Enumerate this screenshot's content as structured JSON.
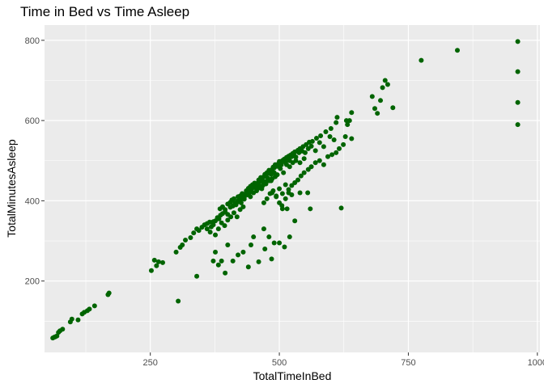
{
  "chart_data": {
    "type": "scatter",
    "title": "Time in Bed vs Time Asleep",
    "xlabel": "TotalTimeInBed",
    "ylabel": "TotalMinutesAsleep",
    "xlim": [
      45,
      1005
    ],
    "ylim": [
      22,
      838
    ],
    "x_ticks": [
      250,
      500,
      750,
      1000
    ],
    "x_tick_labels": [
      "250",
      "500",
      "750",
      "1000"
    ],
    "y_ticks": [
      200,
      400,
      600,
      800
    ],
    "y_tick_labels": [
      "200",
      "400",
      "600",
      "800"
    ],
    "grid": true,
    "legend": "none",
    "point_color": "#006400",
    "panel_background": "#ebebeb",
    "grid_color": "#ffffff",
    "points": [
      [
        61,
        58
      ],
      [
        64,
        60
      ],
      [
        66,
        61
      ],
      [
        69,
        63
      ],
      [
        72,
        72
      ],
      [
        75,
        76
      ],
      [
        80,
        80
      ],
      [
        95,
        98
      ],
      [
        98,
        105
      ],
      [
        110,
        103
      ],
      [
        118,
        118
      ],
      [
        122,
        122
      ],
      [
        128,
        126
      ],
      [
        132,
        130
      ],
      [
        142,
        138
      ],
      [
        168,
        166
      ],
      [
        170,
        170
      ],
      [
        252,
        226
      ],
      [
        258,
        252
      ],
      [
        262,
        238
      ],
      [
        266,
        248
      ],
      [
        274,
        246
      ],
      [
        300,
        272
      ],
      [
        308,
        284
      ],
      [
        312,
        290
      ],
      [
        318,
        302
      ],
      [
        328,
        308
      ],
      [
        334,
        320
      ],
      [
        340,
        330
      ],
      [
        344,
        326
      ],
      [
        350,
        334
      ],
      [
        355,
        340
      ],
      [
        360,
        343
      ],
      [
        365,
        347
      ],
      [
        368,
        335
      ],
      [
        372,
        348
      ],
      [
        376,
        350
      ],
      [
        380,
        358
      ],
      [
        383,
        355
      ],
      [
        386,
        364
      ],
      [
        390,
        368
      ],
      [
        395,
        372
      ],
      [
        400,
        366
      ],
      [
        405,
        384
      ],
      [
        410,
        387
      ],
      [
        414,
        394
      ],
      [
        418,
        396
      ],
      [
        422,
        400
      ],
      [
        426,
        405
      ],
      [
        430,
        411
      ],
      [
        434,
        417
      ],
      [
        438,
        422
      ],
      [
        442,
        420
      ],
      [
        446,
        428
      ],
      [
        450,
        433
      ],
      [
        454,
        438
      ],
      [
        458,
        444
      ],
      [
        462,
        449
      ],
      [
        466,
        454
      ],
      [
        470,
        460
      ],
      [
        474,
        462
      ],
      [
        478,
        468
      ],
      [
        482,
        473
      ],
      [
        486,
        478
      ],
      [
        490,
        482
      ],
      [
        494,
        487
      ],
      [
        498,
        492
      ],
      [
        502,
        496
      ],
      [
        506,
        500
      ],
      [
        510,
        504
      ],
      [
        514,
        508
      ],
      [
        518,
        511
      ],
      [
        522,
        514
      ],
      [
        526,
        518
      ],
      [
        530,
        522
      ],
      [
        536,
        526
      ],
      [
        540,
        530
      ],
      [
        546,
        535
      ],
      [
        552,
        540
      ],
      [
        558,
        546
      ],
      [
        564,
        548
      ],
      [
        572,
        556
      ],
      [
        580,
        562
      ],
      [
        590,
        572
      ],
      [
        600,
        580
      ],
      [
        610,
        595
      ],
      [
        612,
        608
      ],
      [
        630,
        600
      ],
      [
        640,
        620
      ],
      [
        385,
        380
      ],
      [
        390,
        385
      ],
      [
        395,
        378
      ],
      [
        400,
        392
      ],
      [
        405,
        396
      ],
      [
        408,
        402
      ],
      [
        412,
        405
      ],
      [
        416,
        390
      ],
      [
        420,
        410
      ],
      [
        424,
        412
      ],
      [
        428,
        418
      ],
      [
        432,
        404
      ],
      [
        436,
        425
      ],
      [
        440,
        431
      ],
      [
        444,
        436
      ],
      [
        448,
        440
      ],
      [
        452,
        444
      ],
      [
        456,
        430
      ],
      [
        460,
        452
      ],
      [
        464,
        458
      ],
      [
        468,
        447
      ],
      [
        472,
        466
      ],
      [
        476,
        470
      ],
      [
        480,
        476
      ],
      [
        484,
        466
      ],
      [
        488,
        484
      ],
      [
        492,
        490
      ],
      [
        496,
        486
      ],
      [
        500,
        498
      ],
      [
        504,
        490
      ],
      [
        508,
        502
      ],
      [
        512,
        496
      ],
      [
        516,
        506
      ],
      [
        520,
        500
      ],
      [
        524,
        510
      ],
      [
        528,
        515
      ],
      [
        532,
        509
      ],
      [
        538,
        520
      ],
      [
        544,
        524
      ],
      [
        550,
        520
      ],
      [
        556,
        530
      ],
      [
        562,
        536
      ],
      [
        570,
        525
      ],
      [
        578,
        545
      ],
      [
        586,
        535
      ],
      [
        598,
        560
      ],
      [
        606,
        552
      ],
      [
        460,
        440
      ],
      [
        466,
        430
      ],
      [
        472,
        448
      ],
      [
        478,
        456
      ],
      [
        484,
        450
      ],
      [
        490,
        470
      ],
      [
        496,
        465
      ],
      [
        502,
        480
      ],
      [
        508,
        470
      ],
      [
        514,
        490
      ],
      [
        520,
        485
      ],
      [
        526,
        495
      ],
      [
        532,
        500
      ],
      [
        540,
        495
      ],
      [
        548,
        505
      ],
      [
        420,
        400
      ],
      [
        426,
        395
      ],
      [
        432,
        408
      ],
      [
        438,
        415
      ],
      [
        444,
        410
      ],
      [
        450,
        420
      ],
      [
        456,
        425
      ],
      [
        462,
        432
      ],
      [
        468,
        438
      ],
      [
        474,
        442
      ],
      [
        480,
        450
      ],
      [
        486,
        455
      ],
      [
        492,
        460
      ],
      [
        486,
        420
      ],
      [
        494,
        412
      ],
      [
        500,
        430
      ],
      [
        506,
        418
      ],
      [
        512,
        440
      ],
      [
        518,
        428
      ],
      [
        524,
        438
      ],
      [
        530,
        445
      ],
      [
        536,
        452
      ],
      [
        542,
        462
      ],
      [
        548,
        470
      ],
      [
        556,
        478
      ],
      [
        562,
        485
      ],
      [
        570,
        495
      ],
      [
        578,
        500
      ],
      [
        586,
        490
      ],
      [
        594,
        510
      ],
      [
        602,
        515
      ],
      [
        610,
        520
      ],
      [
        616,
        530
      ],
      [
        624,
        540
      ],
      [
        628,
        560
      ],
      [
        632,
        590
      ],
      [
        636,
        600
      ],
      [
        640,
        555
      ],
      [
        360,
        330
      ],
      [
        366,
        322
      ],
      [
        372,
        340
      ],
      [
        376,
        315
      ],
      [
        382,
        330
      ],
      [
        388,
        345
      ],
      [
        394,
        338
      ],
      [
        400,
        352
      ],
      [
        406,
        360
      ],
      [
        412,
        370
      ],
      [
        418,
        360
      ],
      [
        424,
        378
      ],
      [
        430,
        385
      ],
      [
        470,
        395
      ],
      [
        476,
        405
      ],
      [
        482,
        418
      ],
      [
        488,
        425
      ],
      [
        494,
        410
      ],
      [
        500,
        395
      ],
      [
        506,
        380
      ],
      [
        512,
        405
      ],
      [
        518,
        420
      ],
      [
        524,
        415
      ],
      [
        304,
        150
      ],
      [
        340,
        212
      ],
      [
        372,
        250
      ],
      [
        376,
        272
      ],
      [
        382,
        240
      ],
      [
        388,
        250
      ],
      [
        395,
        220
      ],
      [
        400,
        290
      ],
      [
        410,
        250
      ],
      [
        420,
        265
      ],
      [
        430,
        272
      ],
      [
        440,
        235
      ],
      [
        445,
        290
      ],
      [
        450,
        310
      ],
      [
        460,
        248
      ],
      [
        470,
        330
      ],
      [
        472,
        280
      ],
      [
        480,
        310
      ],
      [
        485,
        255
      ],
      [
        490,
        295
      ],
      [
        500,
        295
      ],
      [
        505,
        388
      ],
      [
        510,
        285
      ],
      [
        515,
        380
      ],
      [
        520,
        310
      ],
      [
        530,
        350
      ],
      [
        540,
        420
      ],
      [
        555,
        420
      ],
      [
        560,
        380
      ],
      [
        620,
        382
      ],
      [
        680,
        660
      ],
      [
        685,
        630
      ],
      [
        690,
        618
      ],
      [
        696,
        650
      ],
      [
        700,
        682
      ],
      [
        705,
        700
      ],
      [
        710,
        690
      ],
      [
        720,
        632
      ],
      [
        775,
        750
      ],
      [
        845,
        775
      ],
      [
        962,
        797
      ],
      [
        962,
        722
      ],
      [
        962,
        645
      ],
      [
        962,
        590
      ]
    ]
  }
}
